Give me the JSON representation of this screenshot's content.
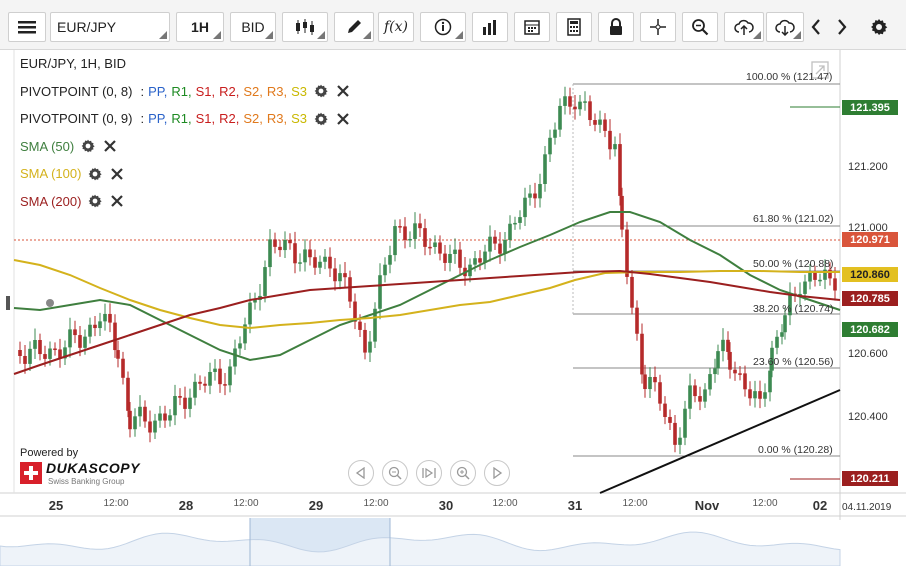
{
  "toolbar": {
    "menu_icon": "hamburger-icon",
    "symbol": "EUR/JPY",
    "timeframe": "1H",
    "side": "BID",
    "icons": [
      "candlestick-icon",
      "pencil-icon",
      "function-icon",
      "info-icon",
      "bar-chart-icon",
      "calendar-icon",
      "calculator-icon",
      "lock-icon",
      "crosshair-icon",
      "zoom-icon",
      "cloud-upload-icon",
      "cloud-download-icon",
      "chevron-left-icon",
      "chevron-right-icon",
      "gear-icon"
    ]
  },
  "legend": {
    "title": "EUR/JPY, 1H, BID",
    "pivot1": {
      "name": "PIVOTPOINT (0, 8)",
      "colon": ":",
      "pp": "PP,",
      "r1": "R1,",
      "s1": "S1,",
      "r2": "R2,",
      "s2": "S2,",
      "r3": "R3,",
      "s3": "S3"
    },
    "pivot2": {
      "name": "PIVOTPOINT (0, 9)",
      "colon": ":",
      "pp": "PP,",
      "r1": "R1,",
      "s1": "S1,",
      "r2": "R2,",
      "s2": "S2,",
      "r3": "R3,",
      "s3": "S3"
    },
    "sma50": "SMA (50)",
    "sma100": "SMA (100)",
    "sma200": "SMA (200)"
  },
  "colors": {
    "pp": "#2a62c9",
    "r1": "#1d8a22",
    "s1": "#c81d1d",
    "r2": "#c81d1d",
    "s2": "#e0791c",
    "r3": "#e0791c",
    "s3": "#c9b800",
    "sma50": "#3f7f3f",
    "sma100": "#d4b21c",
    "sma200": "#9b1f1f",
    "candle_up": "#3d8a52",
    "candle_down": "#b52a2a",
    "trend": "#111111",
    "fib_line": "#8a8a8a"
  },
  "branding": {
    "powered_by": "Powered by",
    "name": "DUKASCOPY",
    "sub": "Swiss Banking Group"
  },
  "price_labels": [
    {
      "text": "121.395",
      "bg": "#2e7d32"
    },
    {
      "text": "120.971",
      "bg": "#d9553b"
    },
    {
      "text": "120.860",
      "bg": "#e3c021",
      "fg": "#222"
    },
    {
      "text": "120.785",
      "bg": "#9b1f1f"
    },
    {
      "text": "120.682",
      "bg": "#2e7d32"
    },
    {
      "text": "120.211",
      "bg": "#9b1f1f"
    }
  ],
  "y_axis_ticks": [
    "121.200",
    "121.000",
    "120.600",
    "120.400"
  ],
  "x_axis": {
    "labels": [
      "25",
      "12:00",
      "28",
      "12:00",
      "29",
      "12:00",
      "30",
      "12:00",
      "31",
      "12:00",
      "Nov",
      "12:00",
      "02"
    ],
    "corner_date": "04.11.2019"
  },
  "fibonacci": [
    {
      "level": "100.00 % (121.47)"
    },
    {
      "level": "61.80 % (121.02)"
    },
    {
      "level": "50.00 % (120.88)"
    },
    {
      "level": "38.20 % (120.74)"
    },
    {
      "level": "23.60 % (120.56)"
    },
    {
      "level": "0.00 % (120.28)"
    }
  ],
  "chart_data": {
    "type": "candlestick",
    "title": "EUR/JPY, 1H, BID",
    "ylim": [
      120.13,
      121.55
    ],
    "series": [
      {
        "name": "SMA (50)"
      },
      {
        "name": "SMA (100)"
      },
      {
        "name": "SMA (200)"
      }
    ]
  }
}
